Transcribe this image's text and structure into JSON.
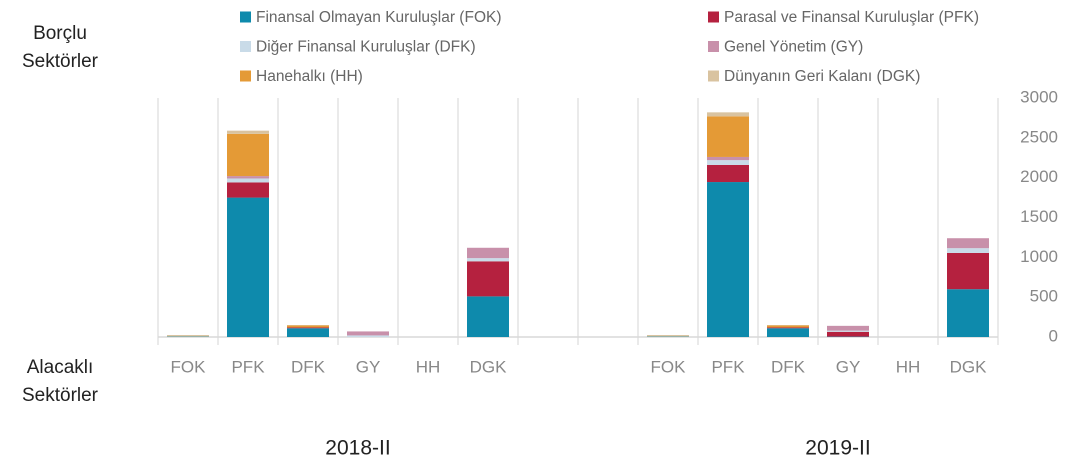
{
  "chart_data": {
    "type": "stacked_bar",
    "y_axis_top_label": "Borçlu Sektörler",
    "x_axis_left_label": "Alacaklı Sektörler",
    "group_labels": [
      "2018-II",
      "2019-II"
    ],
    "categories": [
      "FOK",
      "PFK",
      "DFK",
      "GY",
      "HH",
      "DGK",
      null,
      null,
      "FOK",
      "PFK",
      "DFK",
      "GY",
      "HH",
      "DGK"
    ],
    "series": [
      {
        "name": "Finansal Olmayan Kuruluşlar (FOK)",
        "color": "#0e8aac",
        "values": [
          5,
          1750,
          110,
          0,
          0,
          510,
          null,
          null,
          5,
          1945,
          110,
          5,
          0,
          600
        ]
      },
      {
        "name": "Parasal ve Finansal Kuruluşlar (PFK)",
        "color": "#b5213f",
        "values": [
          0,
          190,
          10,
          0,
          0,
          440,
          null,
          null,
          0,
          215,
          10,
          60,
          0,
          455
        ]
      },
      {
        "name": "Diğer Finansal Kuruluşlar (DFK)",
        "color": "#c9dbe8",
        "values": [
          0,
          50,
          0,
          20,
          0,
          40,
          null,
          null,
          0,
          60,
          0,
          15,
          0,
          60
        ]
      },
      {
        "name": "Genel Yönetim (GY)",
        "color": "#c890aa",
        "values": [
          0,
          30,
          0,
          50,
          0,
          130,
          null,
          null,
          0,
          40,
          0,
          60,
          0,
          125
        ]
      },
      {
        "name": "Hanehalkı (HH)",
        "color": "#e49a36",
        "values": [
          0,
          530,
          25,
          0,
          0,
          0,
          null,
          null,
          0,
          510,
          25,
          0,
          0,
          0
        ]
      },
      {
        "name": "Dünyanın Geri Kalanı (DGK)",
        "color": "#d9c3a0",
        "values": [
          20,
          40,
          5,
          0,
          0,
          0,
          null,
          null,
          20,
          50,
          5,
          0,
          0,
          0
        ]
      }
    ],
    "ylim": [
      0,
      3000
    ],
    "yticks": [
      0,
      500,
      1000,
      1500,
      2000,
      2500,
      3000
    ],
    "grid": false
  }
}
